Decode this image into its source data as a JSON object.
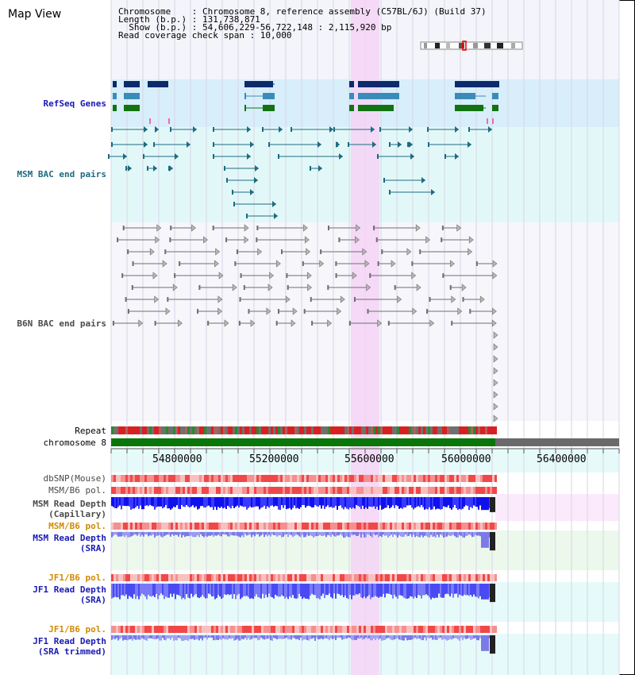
{
  "app_title": "Map View",
  "header": {
    "line1": "Chromosome    : Chromosome 8, reference assembly (C57BL/6J) (Build 37)",
    "line2": "Length (b.p.) : 131,738,871",
    "line3": "  Show (b.p.) : 54,606,229-56,722,148 : 2,115,920 bp",
    "line4": "Read coverage check span : 10,000"
  },
  "tracks": {
    "refseq": "RefSeq Genes",
    "msm_bac": "MSM BAC end pairs",
    "b6n_bac": "B6N BAC end pairs",
    "repeat": "Repeat",
    "chromosome": "chromosome 8",
    "dbsnp": "dbSNP(Mouse)",
    "msm_b6_pol": "MSM/B6 pol.",
    "msm_depth_cap_1": "MSM Read Depth",
    "msm_depth_cap_2": "(Capillary)",
    "msm_b6_pol_2": "MSM/B6 pol.",
    "msm_depth_sra_1": "MSM Read Depth",
    "msm_depth_sra_2": "(SRA)",
    "jf1_b6_pol": "JF1/B6 pol.",
    "jf1_depth_sra_1": "JF1 Read Depth",
    "jf1_depth_sra_2": "(SRA)",
    "jf1_b6_pol_2": "JF1/B6 pol.",
    "jf1_depth_trim_1": "JF1 Read Depth",
    "jf1_depth_trim_2": "(SRA trimmed)"
  },
  "axis": {
    "ticks": [
      "54800000",
      "55200000",
      "55600000",
      "56000000",
      "56400000"
    ]
  },
  "colors": {
    "refseq_dark": "#0d2a6b",
    "refseq_mid": "#3a8cb8",
    "refseq_green": "#127312",
    "msm_bac": "#1e6b80",
    "b6n_bac": "#707070",
    "highlight": "#f4d4f4",
    "depth_blue": "#1a1aff",
    "depth_light": "#8a8aff",
    "pol_red": "#e83030"
  }
}
